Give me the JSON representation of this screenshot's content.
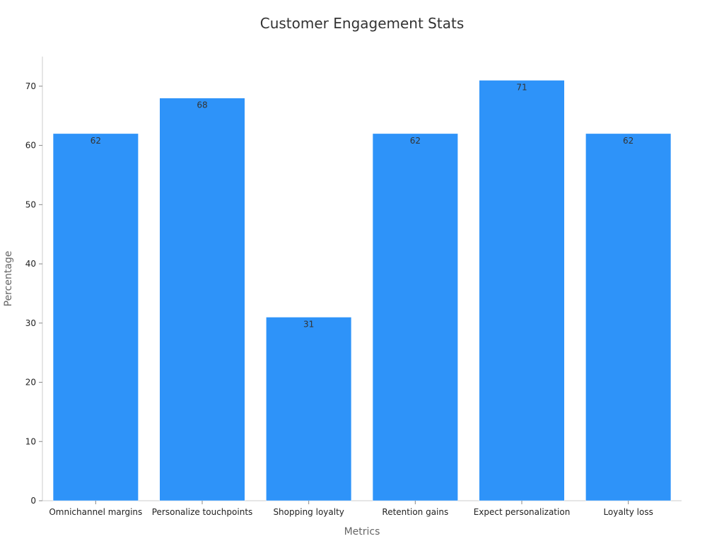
{
  "chart_data": {
    "type": "bar",
    "title": "Customer Engagement Stats",
    "xlabel": "Metrics",
    "ylabel": "Percentage",
    "categories": [
      "Omnichannel margins",
      "Personalize touchpoints",
      "Shopping loyalty",
      "Retention gains",
      "Expect personalization",
      "Loyalty loss"
    ],
    "values": [
      62,
      68,
      31,
      62,
      71,
      62
    ],
    "value_labels": [
      "62",
      "68",
      "31",
      "62",
      "71",
      "62"
    ],
    "ylim": [
      0,
      75
    ],
    "yticks": [
      0,
      10,
      20,
      30,
      40,
      50,
      60,
      70
    ],
    "ytick_labels": [
      "0",
      "10",
      "20",
      "30",
      "40",
      "50",
      "60",
      "70"
    ],
    "grid": false,
    "legend": "none",
    "bar_color": "#2e93f9"
  }
}
